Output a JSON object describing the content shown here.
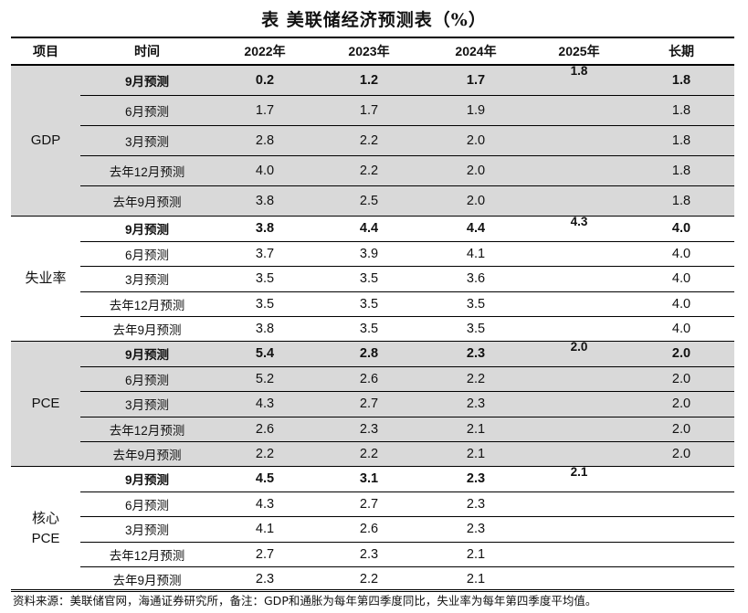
{
  "title": "表 美联储经济预测表（%）",
  "headers": [
    "项目",
    "时间",
    "2022年",
    "2023年",
    "2024年",
    "2025年",
    "长期"
  ],
  "groups": [
    {
      "name": "GDP",
      "rows": [
        {
          "label": "9月预测",
          "y2022": "0.2",
          "y2023": "1.2",
          "y2024": "1.7",
          "y2025": "1.8",
          "long": "1.8"
        },
        {
          "label": "6月预测",
          "y2022": "1.7",
          "y2023": "1.7",
          "y2024": "1.9",
          "y2025": "",
          "long": "1.8"
        },
        {
          "label": "3月预测",
          "y2022": "2.8",
          "y2023": "2.2",
          "y2024": "2.0",
          "y2025": "",
          "long": "1.8"
        },
        {
          "label": "去年12月预测",
          "y2022": "4.0",
          "y2023": "2.2",
          "y2024": "2.0",
          "y2025": "",
          "long": "1.8"
        },
        {
          "label": "去年9月预测",
          "y2022": "3.8",
          "y2023": "2.5",
          "y2024": "2.0",
          "y2025": "",
          "long": "1.8"
        }
      ]
    },
    {
      "name": "失业率",
      "rows": [
        {
          "label": "9月预测",
          "y2022": "3.8",
          "y2023": "4.4",
          "y2024": "4.4",
          "y2025": "4.3",
          "long": "4.0"
        },
        {
          "label": "6月预测",
          "y2022": "3.7",
          "y2023": "3.9",
          "y2024": "4.1",
          "y2025": "",
          "long": "4.0"
        },
        {
          "label": "3月预测",
          "y2022": "3.5",
          "y2023": "3.5",
          "y2024": "3.6",
          "y2025": "",
          "long": "4.0"
        },
        {
          "label": "去年12月预测",
          "y2022": "3.5",
          "y2023": "3.5",
          "y2024": "3.5",
          "y2025": "",
          "long": "4.0"
        },
        {
          "label": "去年9月预测",
          "y2022": "3.8",
          "y2023": "3.5",
          "y2024": "3.5",
          "y2025": "",
          "long": "4.0"
        }
      ]
    },
    {
      "name": "PCE",
      "rows": [
        {
          "label": "9月预测",
          "y2022": "5.4",
          "y2023": "2.8",
          "y2024": "2.3",
          "y2025": "2.0",
          "long": "2.0"
        },
        {
          "label": "6月预测",
          "y2022": "5.2",
          "y2023": "2.6",
          "y2024": "2.2",
          "y2025": "",
          "long": "2.0"
        },
        {
          "label": "3月预测",
          "y2022": "4.3",
          "y2023": "2.7",
          "y2024": "2.3",
          "y2025": "",
          "long": "2.0"
        },
        {
          "label": "去年12月预测",
          "y2022": "2.6",
          "y2023": "2.3",
          "y2024": "2.1",
          "y2025": "",
          "long": "2.0"
        },
        {
          "label": "去年9月预测",
          "y2022": "2.2",
          "y2023": "2.2",
          "y2024": "2.1",
          "y2025": "",
          "long": "2.0"
        }
      ]
    },
    {
      "name_lines": [
        "核心",
        "PCE"
      ],
      "rows": [
        {
          "label": "9月预测",
          "y2022": "4.5",
          "y2023": "3.1",
          "y2024": "2.3",
          "y2025": "2.1",
          "long": ""
        },
        {
          "label": "6月预测",
          "y2022": "4.3",
          "y2023": "2.7",
          "y2024": "2.3",
          "y2025": "",
          "long": ""
        },
        {
          "label": "3月预测",
          "y2022": "4.1",
          "y2023": "2.6",
          "y2024": "2.3",
          "y2025": "",
          "long": ""
        },
        {
          "label": "去年12月预测",
          "y2022": "2.7",
          "y2023": "2.3",
          "y2024": "2.1",
          "y2025": "",
          "long": ""
        },
        {
          "label": "去年9月预测",
          "y2022": "2.3",
          "y2023": "2.2",
          "y2024": "2.1",
          "y2025": "",
          "long": ""
        }
      ]
    }
  ],
  "footnote": "资料来源：美联储官网，海通证券研究所，备注：GDP和通胀为每年第四季度同比，失业率为每年第四季度平均值。",
  "colors": {
    "shade": "#d9d9d9",
    "rule": "#000000"
  }
}
